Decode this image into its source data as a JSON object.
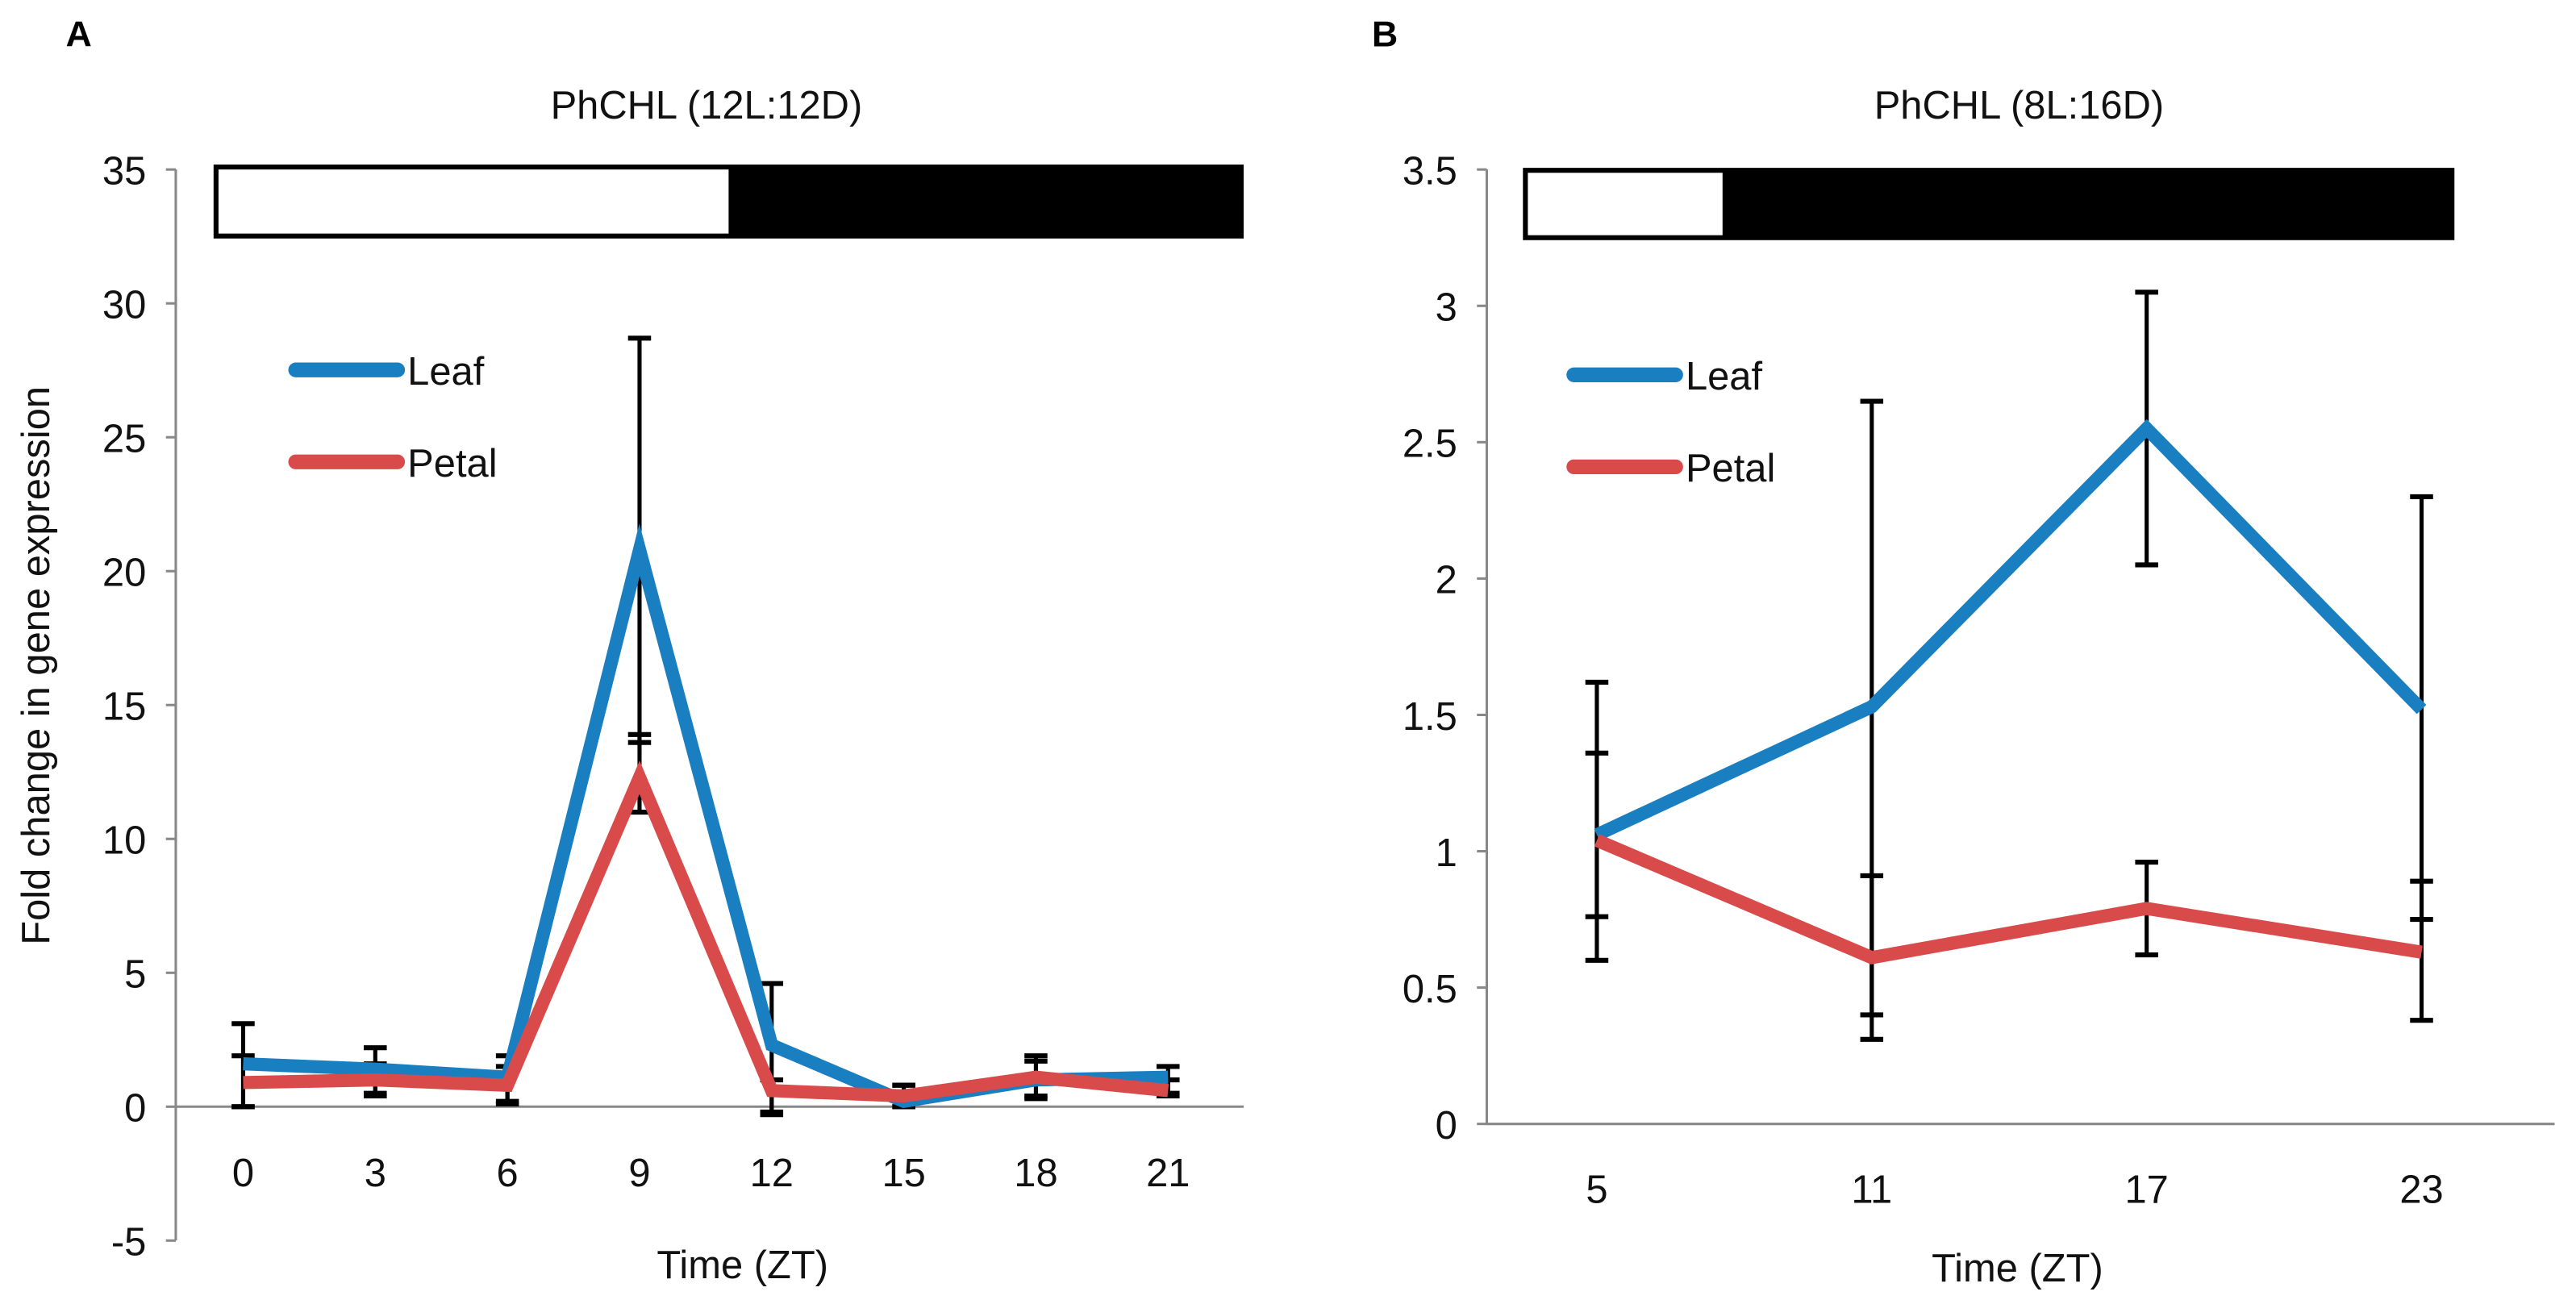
{
  "chart_data": [
    {
      "type": "line",
      "panel_label": "A",
      "title": "PhCHL (12L:12D)",
      "xlabel": "Time (ZT)",
      "ylabel": "Fold change in gene expression",
      "x": [
        0,
        3,
        6,
        9,
        12,
        15,
        18,
        21
      ],
      "x_tick_labels": [
        "0",
        "3",
        "6",
        "9",
        "12",
        "15",
        "18",
        "21"
      ],
      "ylim": [
        -5,
        35
      ],
      "y_ticks": [
        -5,
        0,
        5,
        10,
        15,
        20,
        25,
        30,
        35
      ],
      "y_tick_labels": [
        "-5",
        "0",
        "5",
        "10",
        "15",
        "20",
        "25",
        "30",
        "35"
      ],
      "light_fraction": 0.5,
      "legend": {
        "placement": "top-left",
        "entries": [
          "Leaf",
          "Petal"
        ]
      },
      "series": [
        {
          "name": "Leaf",
          "color": "#1a7fc1",
          "values": [
            1.6,
            1.4,
            1.1,
            20.8,
            2.3,
            0.2,
            1.0,
            1.1
          ],
          "error_low": [
            0.0,
            0.5,
            0.2,
            13.6,
            -0.2,
            0.0,
            0.3,
            0.5
          ],
          "error_high": [
            3.1,
            2.2,
            1.9,
            28.7,
            4.6,
            0.8,
            1.9,
            1.5
          ]
        },
        {
          "name": "Petal",
          "color": "#d94b4b",
          "values": [
            0.9,
            1.0,
            0.8,
            12.3,
            0.6,
            0.4,
            1.1,
            0.6
          ],
          "error_low": [
            0.0,
            0.4,
            0.1,
            11.0,
            -0.3,
            0.0,
            0.4,
            0.4
          ],
          "error_high": [
            1.9,
            1.6,
            1.5,
            13.9,
            1.0,
            0.8,
            1.7,
            1.0
          ]
        }
      ]
    },
    {
      "type": "line",
      "panel_label": "B",
      "title": "PhCHL (8L:16D)",
      "xlabel": "Time (ZT)",
      "ylabel": "",
      "x": [
        5,
        11,
        17,
        23
      ],
      "x_tick_labels": [
        "5",
        "11",
        "17",
        "23"
      ],
      "ylim": [
        0,
        3.5
      ],
      "y_ticks": [
        0,
        0.5,
        1,
        1.5,
        2,
        2.5,
        3,
        3.5
      ],
      "y_tick_labels": [
        "0",
        "0.5",
        "1",
        "1.5",
        "2",
        "2.5",
        "3",
        "3.5"
      ],
      "light_fraction": 0.2143,
      "legend": {
        "placement": "top-left",
        "entries": [
          "Leaf",
          "Petal"
        ]
      },
      "series": [
        {
          "name": "Leaf",
          "color": "#1a7fc1",
          "values": [
            1.06,
            1.53,
            2.55,
            1.52
          ],
          "error_low": [
            0.6,
            0.4,
            2.05,
            0.75
          ],
          "error_high": [
            1.62,
            2.65,
            3.05,
            2.3
          ]
        },
        {
          "name": "Petal",
          "color": "#d94b4b",
          "values": [
            1.04,
            0.61,
            0.79,
            0.63
          ],
          "error_low": [
            0.76,
            0.31,
            0.62,
            0.38
          ],
          "error_high": [
            1.36,
            0.91,
            0.96,
            0.89
          ]
        }
      ]
    }
  ]
}
